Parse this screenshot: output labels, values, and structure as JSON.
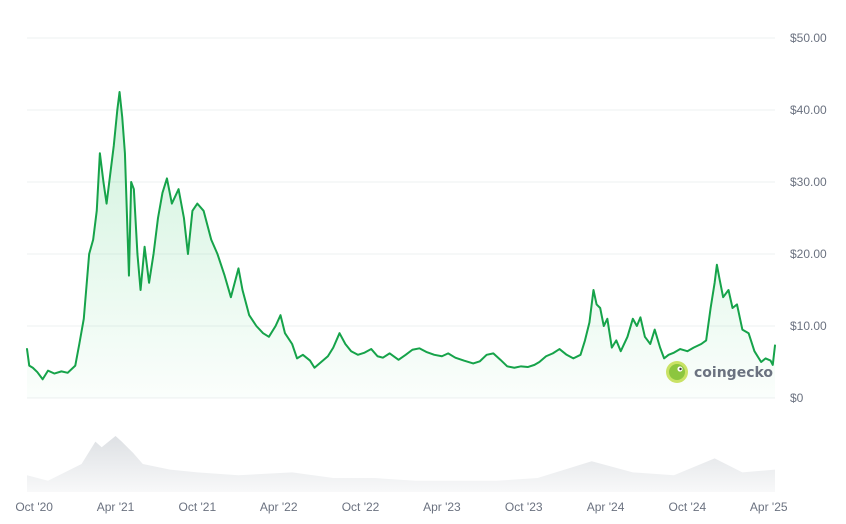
{
  "brand": {
    "name": "coingecko"
  },
  "colors": {
    "line": "#16a34a",
    "area": "#22c55e",
    "grid": "#eef0f2",
    "text": "#6b7280",
    "volume": "#cfd3d8"
  },
  "chart_data": {
    "type": "area",
    "ylim": [
      0,
      50
    ],
    "y_ticks": [
      {
        "value": 50,
        "label": "$50.00"
      },
      {
        "value": 40,
        "label": "$40.00"
      },
      {
        "value": 30,
        "label": "$30.00"
      },
      {
        "value": 20,
        "label": "$20.00"
      },
      {
        "value": 10,
        "label": "$10.00"
      },
      {
        "value": 0,
        "label": "$0"
      }
    ],
    "x_ticks": [
      {
        "date": "2020-10-01",
        "label": "Oct '20"
      },
      {
        "date": "2021-04-01",
        "label": "Apr '21"
      },
      {
        "date": "2021-10-01",
        "label": "Oct '21"
      },
      {
        "date": "2022-04-01",
        "label": "Apr '22"
      },
      {
        "date": "2022-10-01",
        "label": "Oct '22"
      },
      {
        "date": "2023-04-01",
        "label": "Apr '23"
      },
      {
        "date": "2023-10-01",
        "label": "Oct '23"
      },
      {
        "date": "2024-04-01",
        "label": "Apr '24"
      },
      {
        "date": "2024-10-01",
        "label": "Oct '24"
      },
      {
        "date": "2025-04-01",
        "label": "Apr '25"
      }
    ],
    "grid": true,
    "series": [
      {
        "points": [
          [
            "2020-09-15",
            6.8
          ],
          [
            "2020-09-20",
            4.5
          ],
          [
            "2020-09-28",
            4.2
          ],
          [
            "2020-10-08",
            3.6
          ],
          [
            "2020-10-20",
            2.6
          ],
          [
            "2020-11-01",
            3.8
          ],
          [
            "2020-11-15",
            3.4
          ],
          [
            "2020-12-01",
            3.7
          ],
          [
            "2020-12-15",
            3.5
          ],
          [
            "2021-01-01",
            4.5
          ],
          [
            "2021-01-10",
            7.5
          ],
          [
            "2021-01-20",
            11.0
          ],
          [
            "2021-02-01",
            20.0
          ],
          [
            "2021-02-10",
            22.0
          ],
          [
            "2021-02-18",
            26.0
          ],
          [
            "2021-02-25",
            34.0
          ],
          [
            "2021-03-05",
            30.0
          ],
          [
            "2021-03-12",
            27.0
          ],
          [
            "2021-03-20",
            31.0
          ],
          [
            "2021-03-28",
            35.0
          ],
          [
            "2021-04-05",
            40.0
          ],
          [
            "2021-04-10",
            42.5
          ],
          [
            "2021-04-16",
            39.0
          ],
          [
            "2021-04-22",
            34.0
          ],
          [
            "2021-05-01",
            17.0
          ],
          [
            "2021-05-06",
            30.0
          ],
          [
            "2021-05-12",
            29.0
          ],
          [
            "2021-05-20",
            20.0
          ],
          [
            "2021-05-27",
            15.0
          ],
          [
            "2021-06-05",
            21.0
          ],
          [
            "2021-06-15",
            16.0
          ],
          [
            "2021-06-25",
            20.0
          ],
          [
            "2021-07-05",
            25.0
          ],
          [
            "2021-07-15",
            28.5
          ],
          [
            "2021-07-25",
            30.5
          ],
          [
            "2021-08-05",
            27.0
          ],
          [
            "2021-08-20",
            29.0
          ],
          [
            "2021-09-01",
            25.0
          ],
          [
            "2021-09-10",
            20.0
          ],
          [
            "2021-09-20",
            26.0
          ],
          [
            "2021-10-01",
            27.0
          ],
          [
            "2021-10-15",
            26.0
          ],
          [
            "2021-11-01",
            22.0
          ],
          [
            "2021-11-15",
            20.0
          ],
          [
            "2021-12-01",
            17.0
          ],
          [
            "2021-12-15",
            14.0
          ],
          [
            "2022-01-01",
            18.0
          ],
          [
            "2022-01-10",
            15.0
          ],
          [
            "2022-01-25",
            11.5
          ],
          [
            "2022-02-10",
            10.0
          ],
          [
            "2022-02-25",
            9.0
          ],
          [
            "2022-03-10",
            8.5
          ],
          [
            "2022-03-25",
            10.0
          ],
          [
            "2022-04-05",
            11.5
          ],
          [
            "2022-04-15",
            9.0
          ],
          [
            "2022-05-01",
            7.5
          ],
          [
            "2022-05-12",
            5.5
          ],
          [
            "2022-05-25",
            6.0
          ],
          [
            "2022-06-10",
            5.2
          ],
          [
            "2022-06-20",
            4.2
          ],
          [
            "2022-07-05",
            5.0
          ],
          [
            "2022-07-20",
            5.8
          ],
          [
            "2022-08-01",
            7.0
          ],
          [
            "2022-08-15",
            9.0
          ],
          [
            "2022-08-28",
            7.5
          ],
          [
            "2022-09-10",
            6.5
          ],
          [
            "2022-09-25",
            6.0
          ],
          [
            "2022-10-10",
            6.3
          ],
          [
            "2022-10-25",
            6.8
          ],
          [
            "2022-11-08",
            5.8
          ],
          [
            "2022-11-20",
            5.6
          ],
          [
            "2022-12-05",
            6.2
          ],
          [
            "2022-12-25",
            5.3
          ],
          [
            "2023-01-10",
            6.0
          ],
          [
            "2023-01-25",
            6.7
          ],
          [
            "2023-02-10",
            6.9
          ],
          [
            "2023-02-25",
            6.4
          ],
          [
            "2023-03-15",
            6.0
          ],
          [
            "2023-04-01",
            5.8
          ],
          [
            "2023-04-15",
            6.2
          ],
          [
            "2023-05-01",
            5.6
          ],
          [
            "2023-05-20",
            5.2
          ],
          [
            "2023-06-10",
            4.8
          ],
          [
            "2023-06-25",
            5.1
          ],
          [
            "2023-07-10",
            6.0
          ],
          [
            "2023-07-25",
            6.2
          ],
          [
            "2023-08-10",
            5.3
          ],
          [
            "2023-08-25",
            4.4
          ],
          [
            "2023-09-10",
            4.2
          ],
          [
            "2023-09-25",
            4.4
          ],
          [
            "2023-10-10",
            4.3
          ],
          [
            "2023-10-25",
            4.6
          ],
          [
            "2023-11-05",
            5.0
          ],
          [
            "2023-11-20",
            5.8
          ],
          [
            "2023-12-05",
            6.2
          ],
          [
            "2023-12-20",
            6.8
          ],
          [
            "2024-01-05",
            6.0
          ],
          [
            "2024-01-20",
            5.5
          ],
          [
            "2024-02-05",
            6.0
          ],
          [
            "2024-02-15",
            8.0
          ],
          [
            "2024-02-25",
            10.5
          ],
          [
            "2024-03-05",
            15.0
          ],
          [
            "2024-03-12",
            13.0
          ],
          [
            "2024-03-20",
            12.5
          ],
          [
            "2024-03-28",
            10.0
          ],
          [
            "2024-04-05",
            11.0
          ],
          [
            "2024-04-15",
            7.0
          ],
          [
            "2024-04-25",
            8.0
          ],
          [
            "2024-05-05",
            6.5
          ],
          [
            "2024-05-20",
            8.5
          ],
          [
            "2024-06-01",
            11.0
          ],
          [
            "2024-06-10",
            10.0
          ],
          [
            "2024-06-18",
            11.2
          ],
          [
            "2024-06-28",
            8.5
          ],
          [
            "2024-07-10",
            7.5
          ],
          [
            "2024-07-20",
            9.5
          ],
          [
            "2024-08-01",
            7.0
          ],
          [
            "2024-08-10",
            5.5
          ],
          [
            "2024-08-20",
            6.0
          ],
          [
            "2024-09-01",
            6.3
          ],
          [
            "2024-09-15",
            6.8
          ],
          [
            "2024-10-01",
            6.5
          ],
          [
            "2024-10-15",
            7.0
          ],
          [
            "2024-11-01",
            7.5
          ],
          [
            "2024-11-12",
            8.0
          ],
          [
            "2024-11-22",
            12.5
          ],
          [
            "2024-12-01",
            16.0
          ],
          [
            "2024-12-06",
            18.5
          ],
          [
            "2024-12-12",
            16.5
          ],
          [
            "2024-12-20",
            14.0
          ],
          [
            "2025-01-01",
            15.0
          ],
          [
            "2025-01-10",
            12.5
          ],
          [
            "2025-01-20",
            13.0
          ],
          [
            "2025-02-01",
            9.5
          ],
          [
            "2025-02-15",
            9.0
          ],
          [
            "2025-02-28",
            6.5
          ],
          [
            "2025-03-15",
            5.0
          ],
          [
            "2025-03-25",
            5.5
          ],
          [
            "2025-04-05",
            5.2
          ],
          [
            "2025-04-10",
            4.6
          ],
          [
            "2025-04-15",
            7.3
          ]
        ]
      }
    ],
    "volume": [
      [
        "2020-09-15",
        0.3
      ],
      [
        "2020-11-01",
        0.2
      ],
      [
        "2021-01-15",
        0.5
      ],
      [
        "2021-02-15",
        0.9
      ],
      [
        "2021-03-01",
        0.8
      ],
      [
        "2021-04-01",
        1.0
      ],
      [
        "2021-04-15",
        0.9
      ],
      [
        "2021-05-10",
        0.7
      ],
      [
        "2021-06-01",
        0.5
      ],
      [
        "2021-08-01",
        0.4
      ],
      [
        "2021-10-01",
        0.35
      ],
      [
        "2022-01-01",
        0.3
      ],
      [
        "2022-05-01",
        0.35
      ],
      [
        "2022-08-01",
        0.25
      ],
      [
        "2022-11-01",
        0.25
      ],
      [
        "2023-02-01",
        0.2
      ],
      [
        "2023-05-01",
        0.2
      ],
      [
        "2023-08-01",
        0.2
      ],
      [
        "2023-11-01",
        0.25
      ],
      [
        "2024-03-01",
        0.55
      ],
      [
        "2024-06-01",
        0.35
      ],
      [
        "2024-09-01",
        0.3
      ],
      [
        "2024-12-01",
        0.6
      ],
      [
        "2025-02-01",
        0.35
      ],
      [
        "2025-04-15",
        0.4
      ]
    ]
  }
}
